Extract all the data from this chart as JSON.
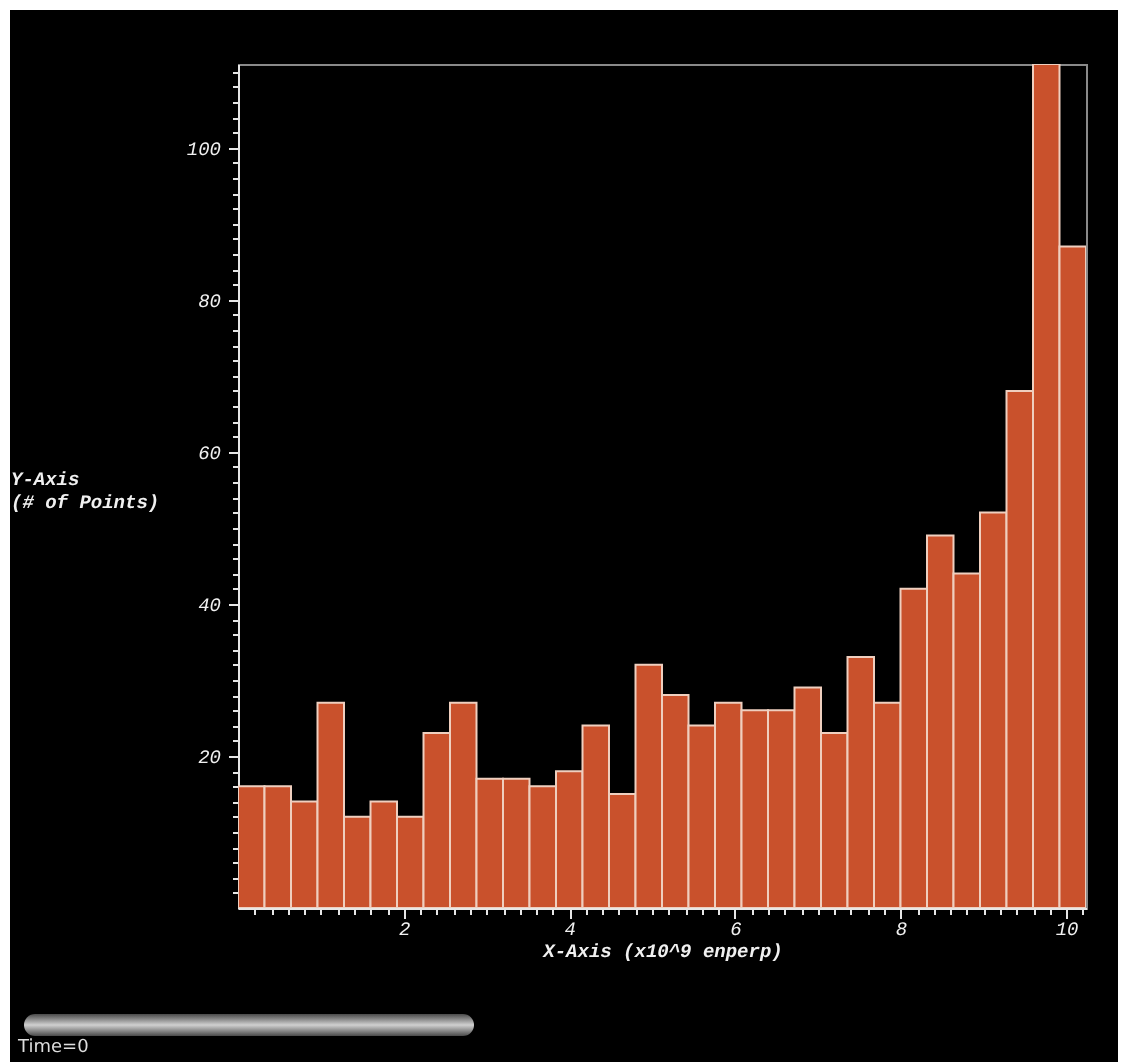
{
  "chart_data": {
    "type": "histogram",
    "xlabel": "X-Axis (x10^9 enperp)",
    "ylabel": "Y-Axis\n(# of Points)",
    "annotations": [
      "Time=0"
    ],
    "bins": [
      0,
      0.32,
      0.64,
      0.96,
      1.28,
      1.6,
      1.92,
      2.24,
      2.56,
      2.88,
      3.2,
      3.52,
      3.84,
      4.16,
      4.48,
      4.8,
      5.12,
      5.44,
      5.76,
      6.08,
      6.4,
      6.72,
      7.04,
      7.36,
      7.68,
      8,
      8.32,
      8.64,
      8.96,
      9.28,
      9.6,
      9.92,
      10.24
    ],
    "values": [
      16,
      16,
      14,
      27,
      12,
      14,
      12,
      23,
      27,
      17,
      17,
      16,
      18,
      24,
      15,
      32,
      28,
      24,
      27,
      26,
      26,
      29,
      23,
      33,
      27,
      42,
      49,
      44,
      52,
      68,
      111,
      87
    ],
    "color": "#c9512c",
    "xlim": [
      0,
      10.24
    ],
    "ylim": [
      0,
      111
    ],
    "xticks": [
      {
        "value": 0.2,
        "label": null
      },
      {
        "value": 0.4,
        "label": null
      },
      {
        "value": 0.6,
        "label": null
      },
      {
        "value": 0.8,
        "label": null
      },
      {
        "value": 1,
        "label": null
      },
      {
        "value": 1.2,
        "label": null
      },
      {
        "value": 1.4,
        "label": null
      },
      {
        "value": 1.6,
        "label": null
      },
      {
        "value": 1.8,
        "label": null
      },
      2,
      {
        "value": 2.2,
        "label": null
      },
      {
        "value": 2.4,
        "label": null
      },
      {
        "value": 2.6,
        "label": null
      },
      {
        "value": 2.8,
        "label": null
      },
      {
        "value": 3,
        "label": null
      },
      {
        "value": 3.2,
        "label": null
      },
      {
        "value": 3.4,
        "label": null
      },
      {
        "value": 3.6,
        "label": null
      },
      {
        "value": 3.8,
        "label": null
      },
      4,
      {
        "value": 4.2,
        "label": null
      },
      {
        "value": 4.4,
        "label": null
      },
      {
        "value": 4.6,
        "label": null
      },
      {
        "value": 4.8,
        "label": null
      },
      {
        "value": 5,
        "label": null
      },
      {
        "value": 5.2,
        "label": null
      },
      {
        "value": 5.4,
        "label": null
      },
      {
        "value": 5.6,
        "label": null
      },
      {
        "value": 5.8,
        "label": null
      },
      6,
      {
        "value": 6.2,
        "label": null
      },
      {
        "value": 6.4,
        "label": null
      },
      {
        "value": 6.6,
        "label": null
      },
      {
        "value": 6.8,
        "label": null
      },
      {
        "value": 7,
        "label": null
      },
      {
        "value": 7.2,
        "label": null
      },
      {
        "value": 7.4,
        "label": null
      },
      {
        "value": 7.6,
        "label": null
      },
      {
        "value": 7.8,
        "label": null
      },
      8,
      {
        "value": 8.2,
        "label": null
      },
      {
        "value": 8.4,
        "label": null
      },
      {
        "value": 8.6,
        "label": null
      },
      {
        "value": 8.8,
        "label": null
      },
      {
        "value": 9,
        "label": null
      },
      {
        "value": 9.2,
        "label": null
      },
      {
        "value": 9.4,
        "label": null
      },
      {
        "value": 9.6,
        "label": null
      },
      {
        "value": 9.8,
        "label": null
      },
      10,
      {
        "value": 10.2,
        "label": null
      }
    ],
    "yticks": [
      {
        "value": 2,
        "label": null
      },
      {
        "value": 4,
        "label": null
      },
      {
        "value": 6,
        "label": null
      },
      {
        "value": 8,
        "label": null
      },
      {
        "value": 10,
        "label": null
      },
      {
        "value": 12,
        "label": null
      },
      {
        "value": 14,
        "label": null
      },
      {
        "value": 16,
        "label": null
      },
      {
        "value": 18,
        "label": null
      },
      20,
      {
        "value": 22,
        "label": null
      },
      {
        "value": 24,
        "label": null
      },
      {
        "value": 26,
        "label": null
      },
      {
        "value": 28,
        "label": null
      },
      {
        "value": 30,
        "label": null
      },
      {
        "value": 32,
        "label": null
      },
      {
        "value": 34,
        "label": null
      },
      {
        "value": 36,
        "label": null
      },
      {
        "value": 38,
        "label": null
      },
      40,
      {
        "value": 42,
        "label": null
      },
      {
        "value": 44,
        "label": null
      },
      {
        "value": 46,
        "label": null
      },
      {
        "value": 48,
        "label": null
      },
      {
        "value": 50,
        "label": null
      },
      {
        "value": 52,
        "label": null
      },
      {
        "value": 54,
        "label": null
      },
      {
        "value": 56,
        "label": null
      },
      {
        "value": 58,
        "label": null
      },
      60,
      {
        "value": 62,
        "label": null
      },
      {
        "value": 64,
        "label": null
      },
      {
        "value": 66,
        "label": null
      },
      {
        "value": 68,
        "label": null
      },
      {
        "value": 70,
        "label": null
      },
      {
        "value": 72,
        "label": null
      },
      {
        "value": 74,
        "label": null
      },
      {
        "value": 76,
        "label": null
      },
      {
        "value": 78,
        "label": null
      },
      80,
      {
        "value": 82,
        "label": null
      },
      {
        "value": 84,
        "label": null
      },
      {
        "value": 86,
        "label": null
      },
      {
        "value": 88,
        "label": null
      },
      {
        "value": 90,
        "label": null
      },
      {
        "value": 92,
        "label": null
      },
      {
        "value": 94,
        "label": null
      },
      {
        "value": 96,
        "label": null
      },
      {
        "value": 98,
        "label": null
      },
      100,
      {
        "value": 102,
        "label": null
      },
      {
        "value": 104,
        "label": null
      },
      {
        "value": 106,
        "label": null
      },
      {
        "value": 108,
        "label": null
      },
      {
        "value": 110,
        "label": null
      }
    ]
  }
}
